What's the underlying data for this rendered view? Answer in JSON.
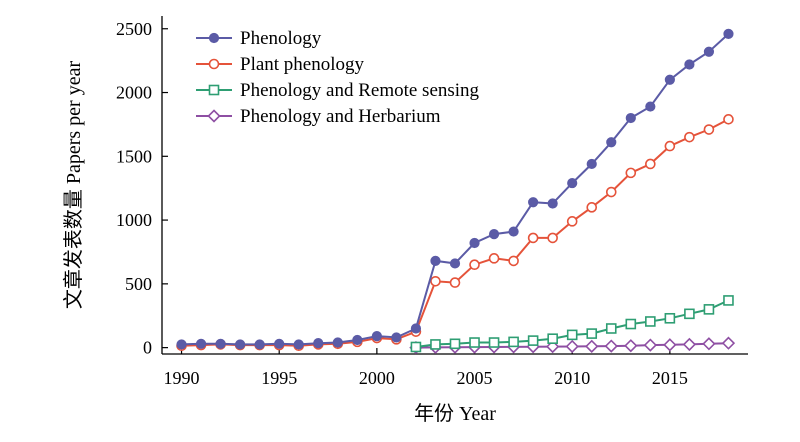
{
  "chart_data": {
    "type": "line",
    "xlabel": "年份 Year",
    "ylabel": "文章发表数量 Papers per year",
    "xlim": [
      1989,
      2019
    ],
    "ylim": [
      -50,
      2600
    ],
    "xticks": [
      1990,
      1995,
      2000,
      2005,
      2010,
      2015
    ],
    "yticks": [
      0,
      500,
      1000,
      1500,
      2000,
      2500
    ],
    "grid": false,
    "legend_position": "top-left",
    "series": [
      {
        "name": "Phenology",
        "color": "#5B5BA6",
        "marker": "filled-circle",
        "x": [
          1990,
          1991,
          1992,
          1993,
          1994,
          1995,
          1996,
          1997,
          1998,
          1999,
          2000,
          2001,
          2002,
          2003,
          2004,
          2005,
          2006,
          2007,
          2008,
          2009,
          2010,
          2011,
          2012,
          2013,
          2014,
          2015,
          2016,
          2017,
          2018
        ],
        "values": [
          25,
          30,
          30,
          25,
          25,
          30,
          25,
          35,
          40,
          60,
          90,
          80,
          150,
          680,
          660,
          820,
          890,
          910,
          1140,
          1130,
          1290,
          1440,
          1610,
          1800,
          1890,
          2100,
          2220,
          2320,
          2460
        ]
      },
      {
        "name": "Plant phenology",
        "color": "#E5533A",
        "marker": "open-circle",
        "x": [
          1990,
          1991,
          1992,
          1993,
          1994,
          1995,
          1996,
          1997,
          1998,
          1999,
          2000,
          2001,
          2002,
          2003,
          2004,
          2005,
          2006,
          2007,
          2008,
          2009,
          2010,
          2011,
          2012,
          2013,
          2014,
          2015,
          2016,
          2017,
          2018
        ],
        "values": [
          15,
          20,
          25,
          20,
          20,
          20,
          15,
          25,
          30,
          45,
          75,
          65,
          125,
          520,
          510,
          650,
          700,
          680,
          860,
          860,
          990,
          1100,
          1220,
          1370,
          1440,
          1580,
          1650,
          1710,
          1790
        ]
      },
      {
        "name": "Phenology and Remote sensing",
        "color": "#2E9E73",
        "marker": "open-square",
        "x": [
          2002,
          2003,
          2004,
          2005,
          2006,
          2007,
          2008,
          2009,
          2010,
          2011,
          2012,
          2013,
          2014,
          2015,
          2016,
          2017,
          2018
        ],
        "values": [
          5,
          25,
          30,
          40,
          40,
          45,
          55,
          70,
          100,
          110,
          150,
          185,
          205,
          230,
          265,
          300,
          370
        ]
      },
      {
        "name": "Phenology and Herbarium",
        "color": "#8E4FA3",
        "marker": "open-diamond",
        "x": [
          2002,
          2003,
          2004,
          2005,
          2006,
          2007,
          2008,
          2009,
          2010,
          2011,
          2012,
          2013,
          2014,
          2015,
          2016,
          2017,
          2018
        ],
        "values": [
          0,
          2,
          3,
          4,
          5,
          6,
          7,
          8,
          9,
          10,
          12,
          15,
          20,
          22,
          25,
          30,
          35
        ]
      }
    ]
  }
}
